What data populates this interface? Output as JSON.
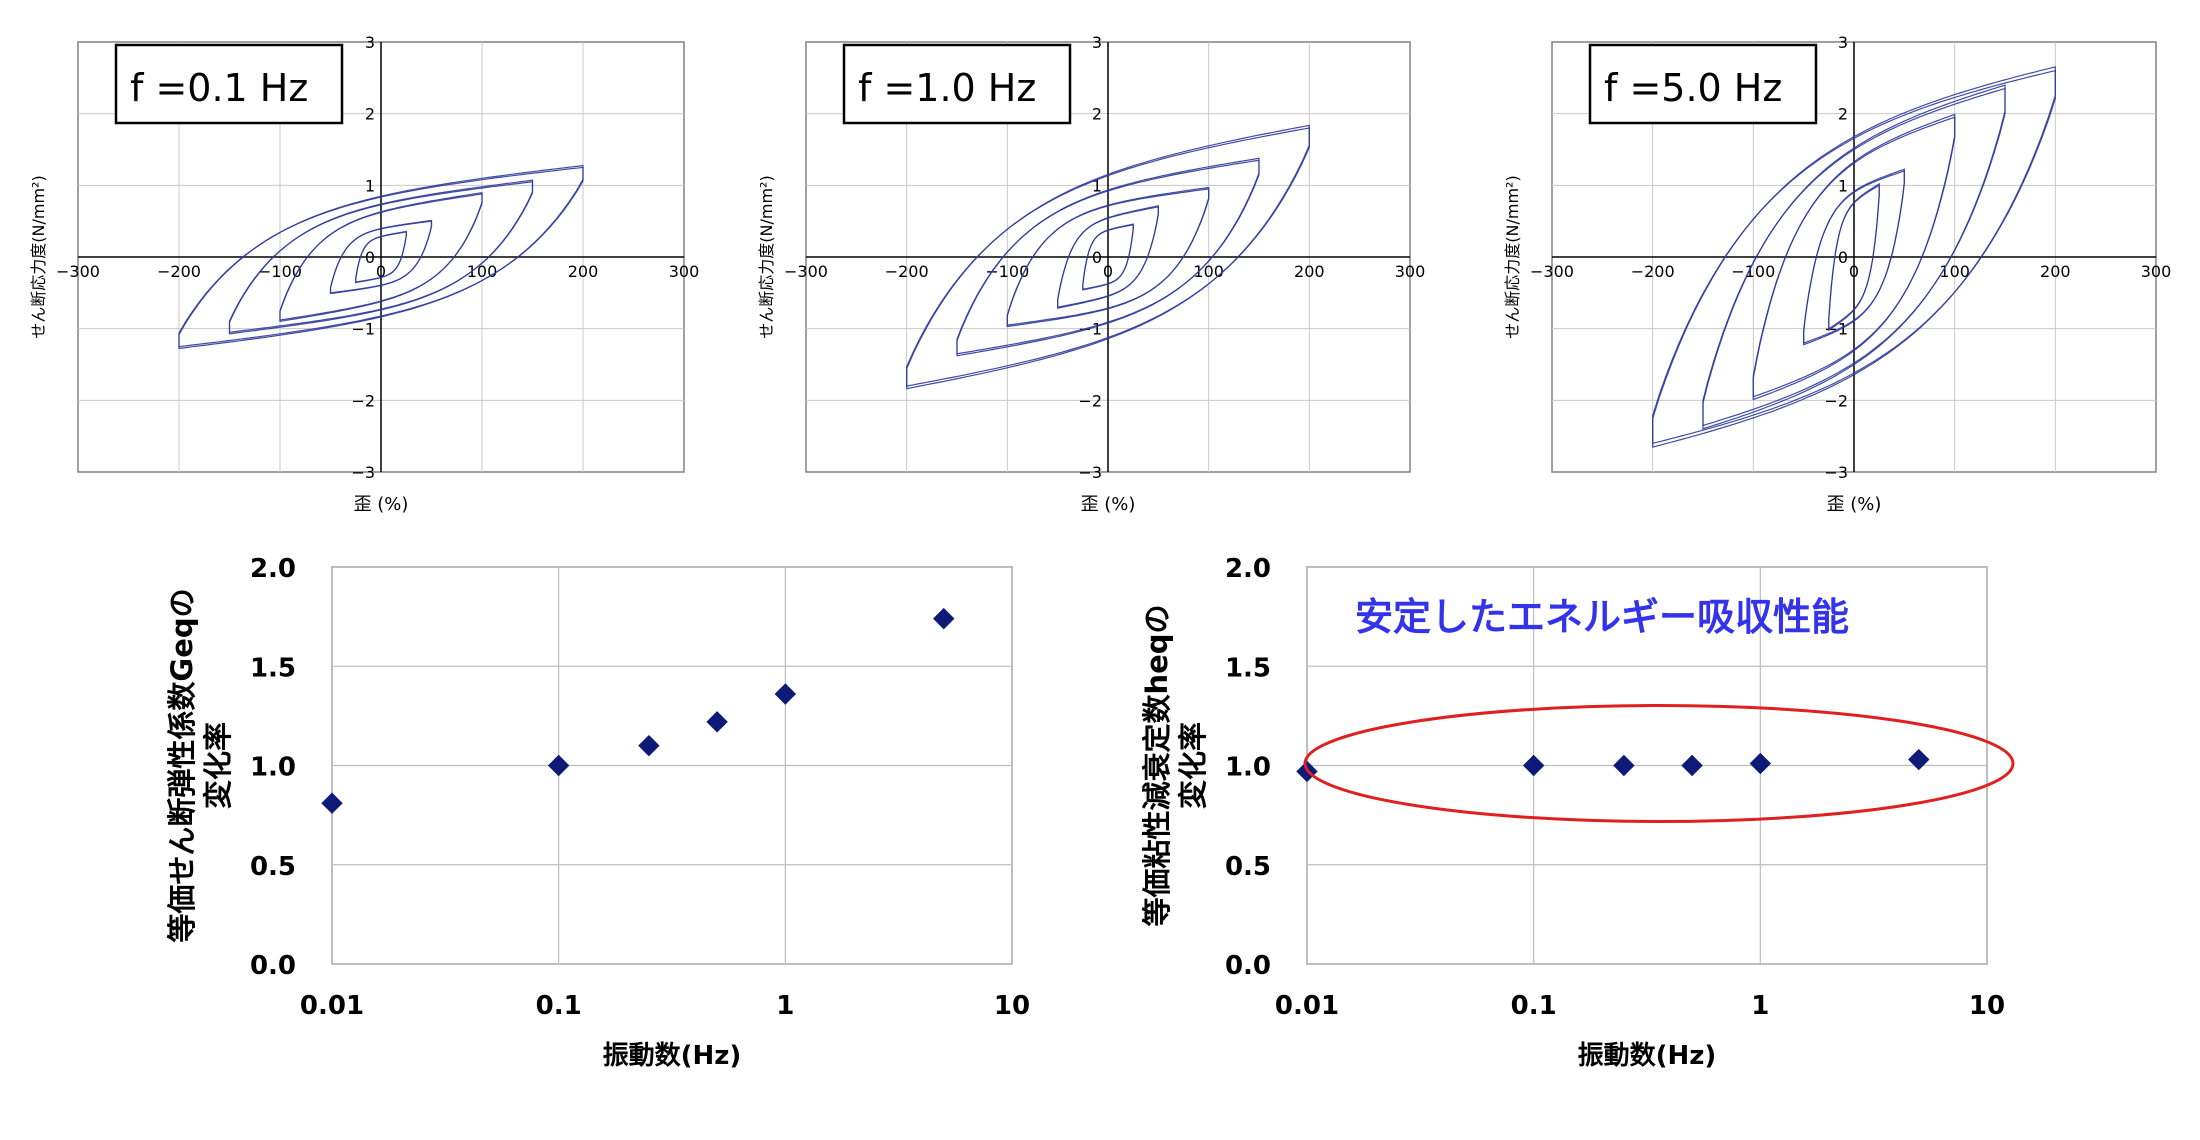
{
  "chart_data": [
    {
      "type": "line",
      "panel_label": "f =0.1 Hz",
      "xlabel": "歪 (%)",
      "ylabel": "せん断応力度(N/mm²)",
      "xlim": [
        -300,
        300
      ],
      "ylim": [
        -3,
        3
      ],
      "xticks": [
        "-300",
        "-200",
        "-100",
        "0",
        "100",
        "200",
        "300"
      ],
      "yticks": [
        "-3",
        "-2",
        "-1",
        "0",
        "1",
        "2",
        "3"
      ],
      "grid": true,
      "series_color": "#2b3a9a",
      "loops": [
        {
          "amp": 25,
          "fmax": 0.35,
          "cpos": 0.22,
          "cneg": -0.22,
          "w": 0.14
        },
        {
          "amp": 50,
          "fmax": 0.5,
          "cpos": 0.3,
          "cneg": -0.3,
          "w": 0.16
        },
        {
          "amp": 100,
          "fmax": 0.88,
          "cpos": 0.42,
          "cneg": -0.4,
          "w": 0.2
        },
        {
          "amp": 150,
          "fmax": 1.05,
          "cpos": 0.5,
          "cneg": -0.5,
          "w": 0.22
        },
        {
          "amp": 200,
          "fmax": 1.25,
          "cpos": 0.58,
          "cneg": -0.55,
          "w": 0.25
        }
      ]
    },
    {
      "type": "line",
      "panel_label": "f =1.0 Hz",
      "xlabel": "歪 (%)",
      "ylabel": "せん断応力度(N/mm²)",
      "xlim": [
        -300,
        300
      ],
      "ylim": [
        -3,
        3
      ],
      "xticks": [
        "-300",
        "-200",
        "-100",
        "0",
        "100",
        "200",
        "300"
      ],
      "yticks": [
        "-3",
        "-2",
        "-1",
        "0",
        "1",
        "2",
        "3"
      ],
      "grid": true,
      "series_color": "#2b3a9a",
      "loops": [
        {
          "amp": 25,
          "fmax": 0.45,
          "cpos": 0.3,
          "cneg": -0.3,
          "w": 0.14
        },
        {
          "amp": 50,
          "fmax": 0.7,
          "cpos": 0.4,
          "cneg": -0.4,
          "w": 0.16
        },
        {
          "amp": 100,
          "fmax": 0.95,
          "cpos": 0.55,
          "cneg": -0.55,
          "w": 0.2
        },
        {
          "amp": 150,
          "fmax": 1.35,
          "cpos": 0.65,
          "cneg": -0.62,
          "w": 0.24
        },
        {
          "amp": 200,
          "fmax": 1.8,
          "cpos": 0.75,
          "cneg": -0.72,
          "w": 0.28
        }
      ]
    },
    {
      "type": "line",
      "panel_label": "f =5.0 Hz",
      "xlabel": "歪 (%)",
      "ylabel": "せん断応力度(N/mm²)",
      "xlim": [
        -300,
        300
      ],
      "ylim": [
        -3,
        3
      ],
      "xticks": [
        "-300",
        "-200",
        "-100",
        "0",
        "100",
        "200",
        "300"
      ],
      "yticks": [
        "-3",
        "-2",
        "-1",
        "0",
        "1",
        "2",
        "3"
      ],
      "grid": true,
      "series_color": "#2b3a9a",
      "loops": [
        {
          "amp": 25,
          "fmax": 1.0,
          "cpos": 0.55,
          "cneg": -0.5,
          "w": 0.18
        },
        {
          "amp": 50,
          "fmax": 1.2,
          "cpos": 0.7,
          "cneg": -0.65,
          "w": 0.2
        },
        {
          "amp": 100,
          "fmax": 1.95,
          "cpos": 0.95,
          "cneg": -0.9,
          "w": 0.26
        },
        {
          "amp": 150,
          "fmax": 2.35,
          "cpos": 1.1,
          "cneg": -1.05,
          "w": 0.3
        },
        {
          "amp": 200,
          "fmax": 2.6,
          "cpos": 1.3,
          "cneg": -1.2,
          "w": 0.32
        }
      ]
    },
    {
      "type": "scatter",
      "xlabel": "振動数(Hz)",
      "ylabel": "等価せん断弾性係数Geqの\n変化率",
      "xscale": "log",
      "xlim": [
        0.01,
        10
      ],
      "ylim": [
        0.0,
        2.0
      ],
      "xticks": [
        "0.01",
        "0.1",
        "1",
        "10"
      ],
      "yticks": [
        "0.0",
        "0.5",
        "1.0",
        "1.5",
        "2.0"
      ],
      "grid": true,
      "marker_color": "#0d1a78",
      "x": [
        0.01,
        0.1,
        0.25,
        0.5,
        1.0,
        5.0
      ],
      "y": [
        0.81,
        1.0,
        1.1,
        1.22,
        1.36,
        1.74
      ]
    },
    {
      "type": "scatter",
      "xlabel": "振動数(Hz)",
      "ylabel": "等価粘性減衰定数heqの\n変化率",
      "xscale": "log",
      "xlim": [
        0.01,
        10
      ],
      "ylim": [
        0.0,
        2.0
      ],
      "xticks": [
        "0.01",
        "0.1",
        "1",
        "10"
      ],
      "yticks": [
        "0.0",
        "0.5",
        "1.0",
        "1.5",
        "2.0"
      ],
      "grid": true,
      "marker_color": "#0d1a78",
      "x": [
        0.01,
        0.1,
        0.25,
        0.5,
        1.0,
        5.0
      ],
      "y": [
        0.97,
        1.0,
        1.0,
        1.0,
        1.01,
        1.03
      ],
      "annotation": "安定したエネルギー吸収性能",
      "annotation_color": "#3333ee",
      "ellipse_color": "#e02020"
    }
  ]
}
